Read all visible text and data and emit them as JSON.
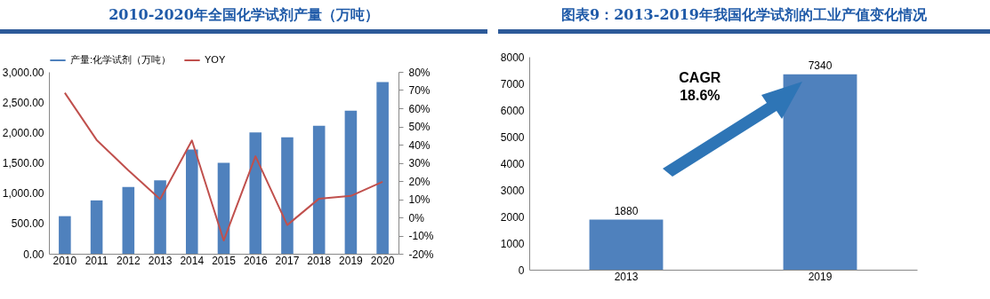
{
  "chart_data": [
    {
      "type": "bar",
      "title": "2010-2020年全国化学试剂产量（万吨）",
      "categories": [
        "2010",
        "2011",
        "2012",
        "2013",
        "2014",
        "2015",
        "2016",
        "2017",
        "2018",
        "2019",
        "2020"
      ],
      "series": [
        {
          "name": "产量:化学试剂（万吨）",
          "type": "bar",
          "color": "#4f81bd",
          "values": [
            620,
            880,
            1100,
            1210,
            1720,
            1500,
            2000,
            1920,
            2110,
            2360,
            2830
          ]
        },
        {
          "name": "YOY",
          "type": "line",
          "axis": "y2",
          "color": "#c0504d",
          "values": [
            68.5,
            42.6,
            25.9,
            10.0,
            42.3,
            -12.7,
            33.6,
            -4.2,
            10.3,
            11.8,
            19.6
          ]
        }
      ],
      "ylim": [
        0,
        3000
      ],
      "yticks": [
        {
          "value": 0,
          "label": "0.00"
        },
        {
          "value": 500,
          "label": "500.00"
        },
        {
          "value": 1000,
          "label": "1,000.00"
        },
        {
          "value": 1500,
          "label": "1,500.00"
        },
        {
          "value": 2000,
          "label": "2,000.00"
        },
        {
          "value": 2500,
          "label": "2,500.00"
        },
        {
          "value": 3000,
          "label": "3,000.00"
        }
      ],
      "y2lim": [
        -20,
        80
      ],
      "y2ticks": [
        {
          "value": -20,
          "label": "-20%"
        },
        {
          "value": -10,
          "label": "-10%"
        },
        {
          "value": 0,
          "label": "0%"
        },
        {
          "value": 10,
          "label": "10%"
        },
        {
          "value": 20,
          "label": "20%"
        },
        {
          "value": 30,
          "label": "30%"
        },
        {
          "value": 40,
          "label": "40%"
        },
        {
          "value": 50,
          "label": "50%"
        },
        {
          "value": 60,
          "label": "60%"
        },
        {
          "value": 70,
          "label": "70%"
        },
        {
          "value": 80,
          "label": "80%"
        }
      ],
      "legend": "top"
    },
    {
      "type": "bar",
      "title": "图表9：2013-2019年我国化学试剂的工业产值变化情况",
      "categories": [
        "2013",
        "2019"
      ],
      "values": [
        1880,
        7340
      ],
      "color": "#4f81bd",
      "ylim": [
        0,
        8000
      ],
      "yticks": [
        0,
        1000,
        2000,
        3000,
        4000,
        5000,
        6000,
        7000,
        8000
      ],
      "data_labels": true,
      "annotations": [
        "CAGR 18.6%"
      ]
    }
  ]
}
